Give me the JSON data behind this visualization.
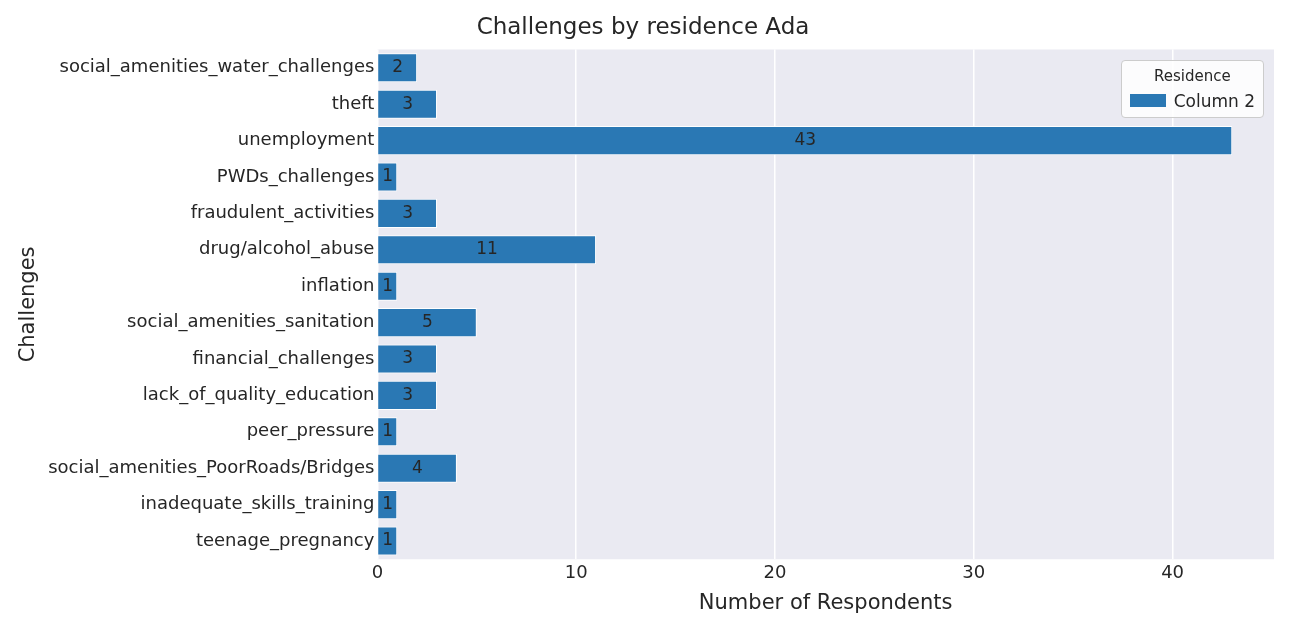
{
  "chart_data": {
    "type": "bar",
    "orientation": "horizontal",
    "title": "Challenges by residence Ada",
    "xlabel": "Number of Respondents",
    "ylabel": "Challenges",
    "legend_title": "Residence",
    "legend": "top right",
    "grid": "x",
    "data_labels": true,
    "categories": [
      "social_amenities_water_challenges",
      "theft",
      "unemployment",
      "PWDs_challenges",
      "fraudulent_activities",
      "drug/alcohol_abuse",
      "inflation",
      "social_amenities_sanitation",
      "financial_challenges",
      "lack_of_quality_education",
      "peer_pressure",
      "social_amenities_PoorRoads/Bridges",
      "inadequate_skills_training",
      "teenage_pregnancy"
    ],
    "series": [
      {
        "name": "Column 2",
        "color": "#2a78b4",
        "values": [
          2,
          3,
          43,
          1,
          3,
          11,
          1,
          5,
          3,
          3,
          1,
          4,
          1,
          1
        ]
      }
    ],
    "xlim": [
      0,
      45.1
    ],
    "xticks": [
      0,
      10,
      20,
      30,
      40
    ]
  }
}
